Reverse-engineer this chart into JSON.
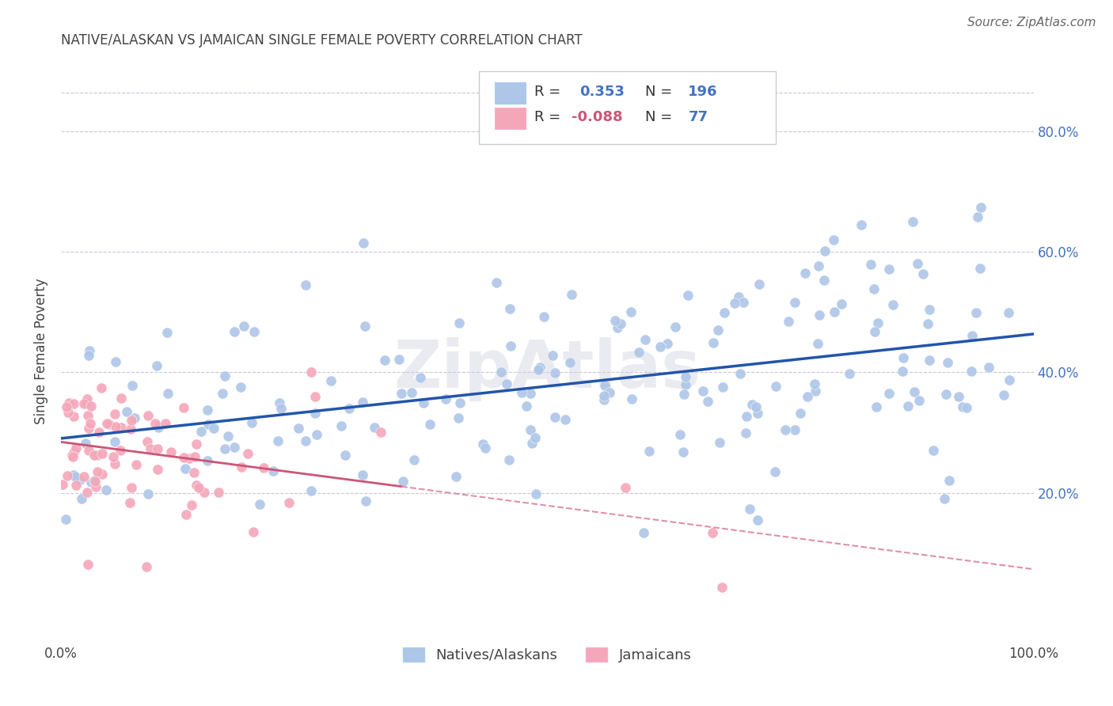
{
  "title": "NATIVE/ALASKAN VS JAMAICAN SINGLE FEMALE POVERTY CORRELATION CHART",
  "source": "Source: ZipAtlas.com",
  "ylabel": "Single Female Poverty",
  "xlim": [
    0,
    1
  ],
  "ylim": [
    -0.05,
    0.92
  ],
  "x_ticks": [
    0.0,
    1.0
  ],
  "x_tick_labels": [
    "0.0%",
    "100.0%"
  ],
  "y_ticks": [
    0.2,
    0.4,
    0.6,
    0.8
  ],
  "y_tick_labels": [
    "20.0%",
    "40.0%",
    "60.0%",
    "80.0%"
  ],
  "native_R": 0.353,
  "native_N": 196,
  "jamaican_R": -0.088,
  "jamaican_N": 77,
  "native_color": "#aec6e8",
  "jamaican_color": "#f4a7b9",
  "native_line_color": "#2255aa",
  "jamaican_line_solid_color": "#cc5577",
  "jamaican_line_dash_color": "#e090a8",
  "legend_labels": [
    "Natives/Alaskans",
    "Jamaicans"
  ],
  "background_color": "#ffffff",
  "grid_color": "#c8c8d8",
  "watermark": "ZipAtlas"
}
